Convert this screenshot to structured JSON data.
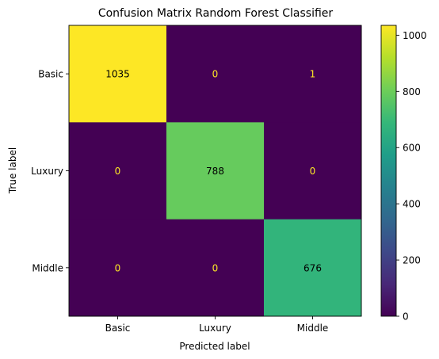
{
  "chart_data": {
    "type": "heatmap",
    "title": "Confusion Matrix Random Forest Classifier",
    "xlabel": "Predicted label",
    "ylabel": "True label",
    "x_categories": [
      "Basic",
      "Luxury",
      "Middle"
    ],
    "y_categories": [
      "Basic",
      "Luxury",
      "Middle"
    ],
    "matrix": [
      [
        1035,
        0,
        1
      ],
      [
        0,
        788,
        0
      ],
      [
        0,
        0,
        676
      ]
    ],
    "colormap": "viridis",
    "color_range": [
      0,
      1035
    ],
    "colorbar_ticks": [
      0,
      200,
      400,
      600,
      800,
      1000
    ],
    "text_color_dark_cell": "#fde725",
    "text_color_light_cell": "#000000"
  }
}
